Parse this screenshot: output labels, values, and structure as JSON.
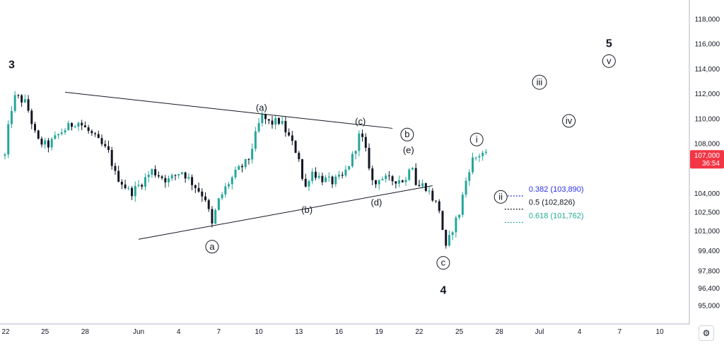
{
  "chart_data": {
    "type": "candlestick",
    "title": "",
    "xlabel": "",
    "ylabel": "",
    "ylim": [
      93500,
      119500
    ],
    "y_ticks": [
      "118,000",
      "116,000",
      "114,000",
      "112,000",
      "110,000",
      "108,000",
      "104,000",
      "102,500",
      "101,000",
      "99,400",
      "97,800",
      "96,400",
      "95,000"
    ],
    "y_tick_values": [
      118000,
      116000,
      114000,
      112000,
      110000,
      108000,
      104000,
      102500,
      101000,
      99400,
      97800,
      96400,
      95000
    ],
    "x_ticks": [
      "22",
      "25",
      "28",
      "Jun",
      "4",
      "7",
      "10",
      "13",
      "16",
      "19",
      "22",
      "25",
      "28",
      "Jul",
      "4",
      "7",
      "10"
    ],
    "x_tick_days": [
      -10,
      -7,
      -4,
      0,
      3,
      6,
      9,
      12,
      15,
      18,
      21,
      24,
      27,
      30,
      33,
      36,
      39
    ],
    "price_path": [
      [
        -10.0,
        107000
      ],
      [
        -9.6,
        110500
      ],
      [
        -9.2,
        111800
      ],
      [
        -8.4,
        111200
      ],
      [
        -7.6,
        108200
      ],
      [
        -6.8,
        107800
      ],
      [
        -5.8,
        108900
      ],
      [
        -4.6,
        109800
      ],
      [
        -3.4,
        108600
      ],
      [
        -2.2,
        107200
      ],
      [
        -1.8,
        105600
      ],
      [
        -0.6,
        104000
      ],
      [
        0.2,
        104800
      ],
      [
        1.0,
        105800
      ],
      [
        2.2,
        105000
      ],
      [
        3.2,
        105800
      ],
      [
        4.2,
        104600
      ],
      [
        5.0,
        103600
      ],
      [
        5.5,
        101400
      ],
      [
        5.9,
        103200
      ],
      [
        6.6,
        104600
      ],
      [
        7.4,
        105800
      ],
      [
        8.2,
        106600
      ],
      [
        8.8,
        108800
      ],
      [
        9.2,
        110200
      ],
      [
        9.8,
        109600
      ],
      [
        10.6,
        109800
      ],
      [
        11.2,
        108600
      ],
      [
        12.0,
        106900
      ],
      [
        12.4,
        104100
      ],
      [
        12.9,
        105800
      ],
      [
        13.6,
        105200
      ],
      [
        14.5,
        104900
      ],
      [
        15.3,
        105300
      ],
      [
        16.0,
        106900
      ],
      [
        16.6,
        108900
      ],
      [
        17.2,
        106500
      ],
      [
        17.6,
        104400
      ],
      [
        18.0,
        105300
      ],
      [
        18.8,
        105000
      ],
      [
        19.4,
        105100
      ],
      [
        20.0,
        105000
      ],
      [
        20.4,
        106900
      ],
      [
        20.8,
        104500
      ],
      [
        21.4,
        104700
      ],
      [
        22.0,
        103600
      ],
      [
        22.5,
        102700
      ],
      [
        23.0,
        99500
      ],
      [
        23.6,
        101500
      ],
      [
        24.0,
        102400
      ],
      [
        24.4,
        104600
      ],
      [
        24.9,
        106600
      ],
      [
        25.4,
        107000
      ],
      [
        25.7,
        107300
      ],
      [
        26.0,
        107000
      ]
    ],
    "trendlines": [
      {
        "name": "upper",
        "from": [
          -5.5,
          112100
        ],
        "to": [
          19.0,
          109200
        ]
      },
      {
        "name": "lower",
        "from": [
          0.0,
          100300
        ],
        "to": [
          22.0,
          104600
        ]
      }
    ],
    "wave_labels": [
      {
        "text": "3",
        "x": -9.5,
        "y": 114300,
        "style": "big"
      },
      {
        "text": "(a)",
        "x": 9.2,
        "y": 110900,
        "style": "paren"
      },
      {
        "text": "(b)",
        "x": 12.6,
        "y": 102700,
        "style": "paren"
      },
      {
        "text": "(c)",
        "x": 16.6,
        "y": 109800,
        "style": "paren"
      },
      {
        "text": "(d)",
        "x": 17.8,
        "y": 103300,
        "style": "paren"
      },
      {
        "text": "(e)",
        "x": 20.2,
        "y": 107500,
        "style": "paren"
      },
      {
        "text": "a",
        "x": 5.5,
        "y": 99700,
        "style": "circle"
      },
      {
        "text": "b",
        "x": 20.1,
        "y": 108700,
        "style": "circle"
      },
      {
        "text": "c",
        "x": 22.8,
        "y": 98400,
        "style": "circle"
      },
      {
        "text": "4",
        "x": 22.8,
        "y": 96200,
        "style": "big"
      },
      {
        "text": "i",
        "x": 25.3,
        "y": 108300,
        "style": "circle"
      },
      {
        "text": "ii",
        "x": 27.1,
        "y": 103700,
        "style": "circle"
      },
      {
        "text": "iii",
        "x": 30.0,
        "y": 112900,
        "style": "circle"
      },
      {
        "text": "iv",
        "x": 32.2,
        "y": 109800,
        "style": "circle"
      },
      {
        "text": "v",
        "x": 35.2,
        "y": 114600,
        "style": "circle"
      },
      {
        "text": "5",
        "x": 35.2,
        "y": 116000,
        "style": "big"
      }
    ],
    "fibonacci": [
      {
        "label": "0.382 (103,890)",
        "level": 103890,
        "color": "#2a2ee6"
      },
      {
        "label": "0.5 (102,826)",
        "level": 102826,
        "color": "#131722"
      },
      {
        "label": "0.618 (101,762)",
        "level": 101762,
        "color": "#22ab94"
      }
    ],
    "last_price": {
      "value": "107,000",
      "countdown": "36:54",
      "level": 107000,
      "color": "#f23645"
    },
    "up_color": "#26a69a",
    "down_color": "#131722",
    "grid": false,
    "legend": "none"
  },
  "toolbar": {
    "settings_icon": "gear-icon",
    "settings_glyph": "⚙"
  }
}
